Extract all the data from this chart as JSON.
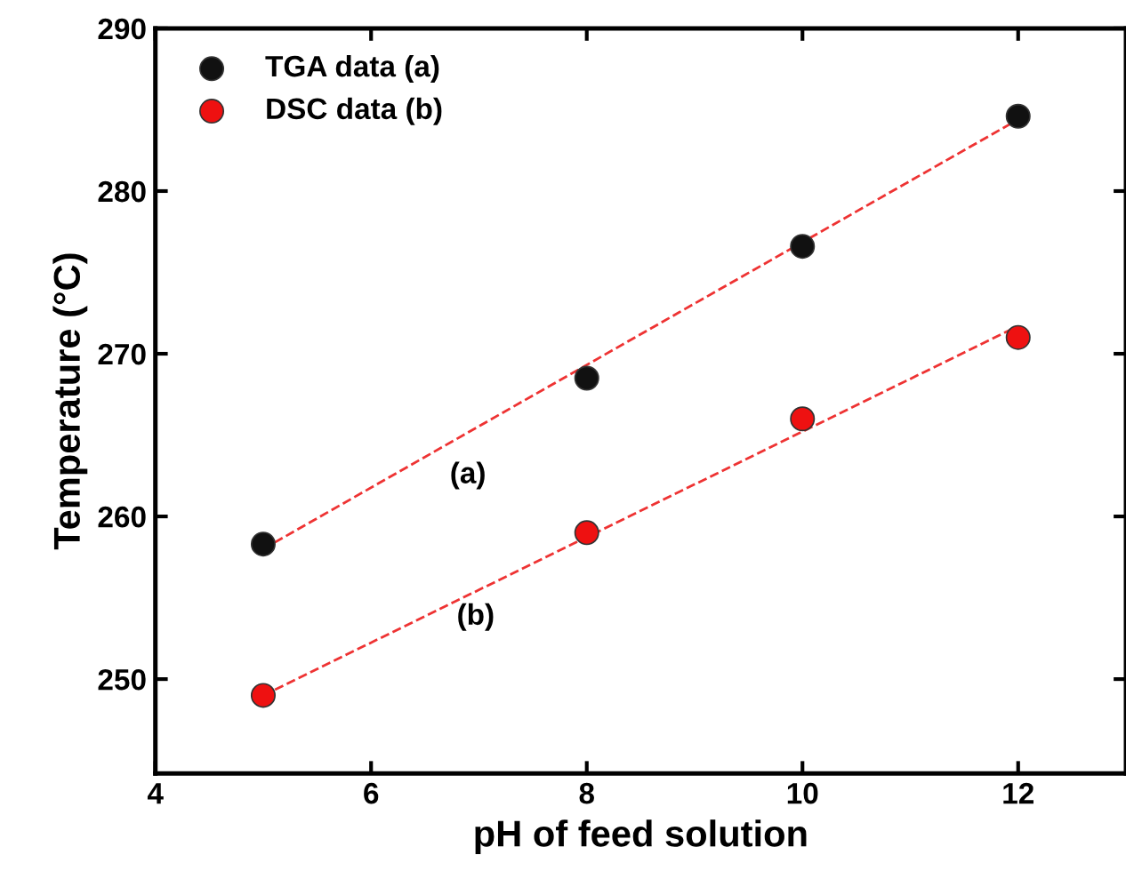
{
  "chart_data": {
    "type": "scatter",
    "xlabel": "pH of feed solution",
    "ylabel": "Temperature (°C)",
    "xlim": [
      4,
      13
    ],
    "ylim": [
      244.2,
      290
    ],
    "xticks": [
      4,
      6,
      8,
      10,
      12
    ],
    "yticks": [
      250,
      260,
      270,
      280,
      290
    ],
    "legend": "top left",
    "grid": false,
    "series": [
      {
        "name": "TGA data (a)",
        "marker": "circle",
        "color": "#111111",
        "x": [
          5,
          8,
          10,
          12
        ],
        "values": [
          258.3,
          268.5,
          276.6,
          284.6
        ]
      },
      {
        "name": "DSC data (b)",
        "marker": "circle",
        "color": "#ee1111",
        "x": [
          5,
          8,
          10,
          12
        ],
        "values": [
          249,
          259,
          266,
          271
        ]
      },
      {
        "type": "line",
        "color": "#ee3333",
        "line_style": "dashed",
        "x": [
          5,
          12
        ],
        "values": [
          258,
          284.4
        ]
      },
      {
        "type": "line",
        "color": "#ee3333",
        "line_style": "dashed",
        "x": [
          5,
          12
        ],
        "values": [
          249,
          271.7
        ]
      }
    ],
    "annotations": [
      "(a)",
      "(b)"
    ]
  }
}
